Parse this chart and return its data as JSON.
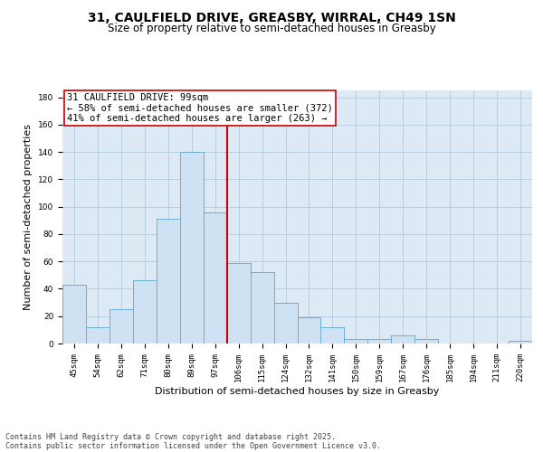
{
  "title_line1": "31, CAULFIELD DRIVE, GREASBY, WIRRAL, CH49 1SN",
  "title_line2": "Size of property relative to semi-detached houses in Greasby",
  "xlabel": "Distribution of semi-detached houses by size in Greasby",
  "ylabel": "Number of semi-detached properties",
  "categories": [
    "45sqm",
    "54sqm",
    "62sqm",
    "71sqm",
    "80sqm",
    "89sqm",
    "97sqm",
    "106sqm",
    "115sqm",
    "124sqm",
    "132sqm",
    "141sqm",
    "150sqm",
    "159sqm",
    "167sqm",
    "176sqm",
    "185sqm",
    "194sqm",
    "211sqm",
    "220sqm"
  ],
  "values": [
    43,
    12,
    25,
    46,
    91,
    140,
    96,
    59,
    52,
    30,
    19,
    12,
    3,
    3,
    6,
    3,
    0,
    0,
    0,
    2
  ],
  "bar_face_color": "#cfe2f3",
  "bar_edge_color": "#6baed6",
  "grid_color": "#b8cfe0",
  "background_color": "#ddeaf5",
  "vline_color": "#cc0000",
  "annotation_box_color": "#cc0000",
  "annotation_box_text": "31 CAULFIELD DRIVE: 99sqm\n← 58% of semi-detached houses are smaller (372)\n41% of semi-detached houses are larger (263) →",
  "ylim": [
    0,
    185
  ],
  "yticks": [
    0,
    20,
    40,
    60,
    80,
    100,
    120,
    140,
    160,
    180
  ],
  "footnote_line1": "Contains HM Land Registry data © Crown copyright and database right 2025.",
  "footnote_line2": "Contains public sector information licensed under the Open Government Licence v3.0.",
  "title_fontsize": 10,
  "subtitle_fontsize": 8.5,
  "axis_label_fontsize": 8,
  "tick_fontsize": 6.5,
  "annotation_fontsize": 7.5,
  "footnote_fontsize": 6
}
